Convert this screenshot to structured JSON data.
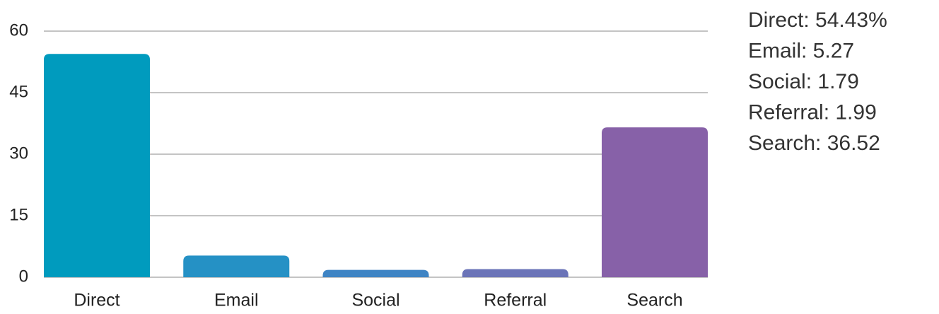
{
  "chart_data": {
    "type": "bar",
    "categories": [
      "Direct",
      "Email",
      "Social",
      "Referral",
      "Search"
    ],
    "values": [
      54.43,
      5.27,
      1.79,
      1.99,
      36.52
    ],
    "value_labels": [
      "Direct: 54.43%",
      "Email: 5.27",
      "Social: 1.79",
      "Referral: 1.99",
      "Search: 36.52"
    ],
    "colors": [
      "#009bbe",
      "#2591c5",
      "#3e84c4",
      "#6b74b8",
      "#8761a8"
    ],
    "ylim": [
      0,
      60
    ],
    "yticks": [
      0,
      15,
      30,
      45,
      60
    ],
    "grid": true
  }
}
